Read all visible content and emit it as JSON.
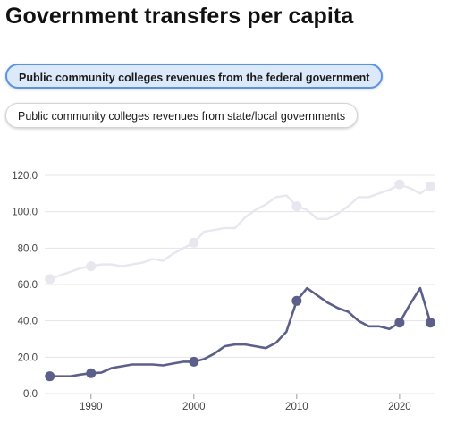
{
  "title": "Government transfers per capita",
  "toggles": [
    {
      "label": "Public community colleges revenues from the federal government",
      "active": true
    },
    {
      "label": "Public community colleges revenues from state/local governments",
      "active": false
    }
  ],
  "colors": {
    "accent": "#5b93e2",
    "federal_series": "#5c5f8a",
    "state_local_series": "#e6e7ef",
    "gridline": "#e4e4e4"
  },
  "chart_data": {
    "type": "line",
    "title": "",
    "xlabel": "",
    "ylabel": "",
    "xlim": [
      1985.5,
      2023.4
    ],
    "ylim": [
      0,
      120
    ],
    "yticks": [
      "0.0",
      "20.0",
      "40.0",
      "60.0",
      "80.0",
      "100.0",
      "120.0"
    ],
    "xticks": [
      1990,
      2000,
      2010,
      2020
    ],
    "grid": true,
    "legend": "none",
    "series": [
      {
        "name": "Public community colleges revenues from the federal government",
        "active": true,
        "x": [
          1986,
          1987,
          1988,
          1989,
          1990,
          1991,
          1992,
          1993,
          1994,
          1995,
          1996,
          1997,
          1998,
          1999,
          2000,
          2001,
          2002,
          2003,
          2004,
          2005,
          2006,
          2007,
          2008,
          2009,
          2010,
          2011,
          2012,
          2013,
          2014,
          2015,
          2016,
          2017,
          2018,
          2019,
          2020,
          2021,
          2022,
          2023
        ],
        "values": [
          9.5,
          9.5,
          9.5,
          10.5,
          11.2,
          11.5,
          14,
          15,
          16,
          16,
          16,
          15.5,
          16.5,
          17.5,
          17.5,
          19,
          22,
          26,
          27,
          27,
          26,
          25,
          28,
          34,
          51,
          58,
          54,
          50,
          47,
          45,
          40,
          37,
          37,
          35.5,
          39,
          49,
          58,
          39
        ],
        "markers": [
          1986,
          1990,
          2000,
          2010,
          2020,
          2023
        ]
      },
      {
        "name": "Public community colleges revenues from state/local governments",
        "active": false,
        "x": [
          1986,
          1987,
          1988,
          1989,
          1990,
          1991,
          1992,
          1993,
          1994,
          1995,
          1996,
          1997,
          1998,
          1999,
          2000,
          2001,
          2002,
          2003,
          2004,
          2005,
          2006,
          2007,
          2008,
          2009,
          2010,
          2011,
          2012,
          2013,
          2014,
          2015,
          2016,
          2017,
          2018,
          2019,
          2020,
          2021,
          2022,
          2023
        ],
        "values": [
          63,
          65,
          67,
          69,
          70,
          71,
          71,
          70,
          71,
          72,
          74,
          73,
          77,
          80,
          83,
          89,
          90,
          91,
          91,
          97,
          101,
          104,
          108,
          109,
          103,
          101,
          96,
          96,
          99,
          103,
          108,
          108,
          110,
          112,
          115,
          113,
          110,
          114
        ],
        "markers": [
          1986,
          1990,
          2000,
          2010,
          2020,
          2023
        ]
      }
    ]
  }
}
